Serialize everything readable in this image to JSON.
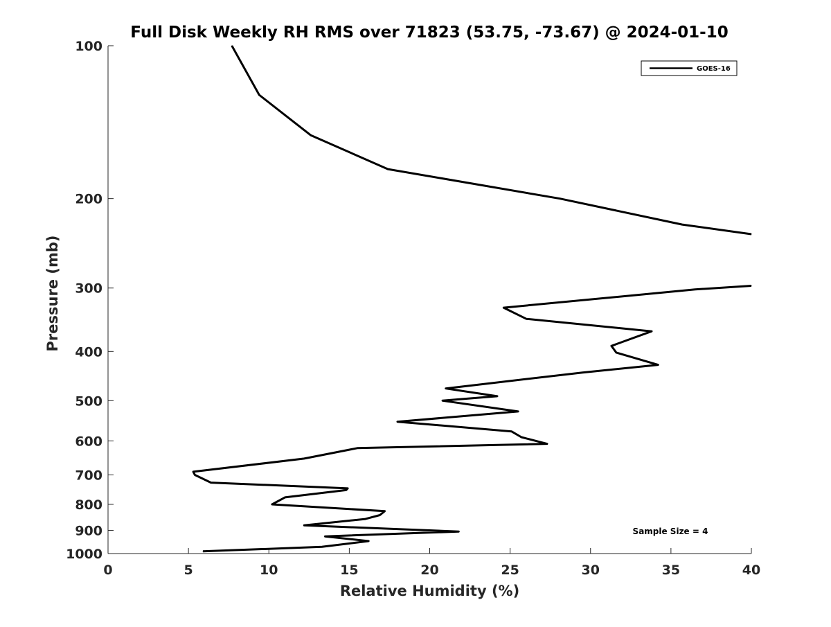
{
  "chart_data": {
    "type": "line",
    "title": "Full Disk Weekly RH RMS over 71823 (53.75, -73.67) @ 2024-01-10",
    "xlabel": "Relative Humidity (%)",
    "ylabel": "Pressure (mb)",
    "xlim": [
      0,
      40
    ],
    "ylim": [
      1000,
      100
    ],
    "yscale": "log",
    "x_ticks": [
      "0",
      "5",
      "10",
      "15",
      "20",
      "25",
      "30",
      "35",
      "40"
    ],
    "y_ticks": [
      "100",
      "200",
      "300",
      "400",
      "500",
      "600",
      "700",
      "800",
      "900",
      "1000"
    ],
    "grid": false,
    "legend_position": "top-right",
    "annotation": "Sample Size = 4",
    "series": [
      {
        "name": "GOES-16",
        "color": "#000000",
        "segments": [
          [
            {
              "x": 7.7,
              "y": 100
            },
            {
              "x": 9.4,
              "y": 125
            },
            {
              "x": 12.6,
              "y": 150
            },
            {
              "x": 17.4,
              "y": 175
            },
            {
              "x": 28.1,
              "y": 200
            },
            {
              "x": 35.7,
              "y": 225
            },
            {
              "x": 40.0,
              "y": 235
            }
          ],
          [
            {
              "x": 40.0,
              "y": 297
            },
            {
              "x": 36.5,
              "y": 302
            },
            {
              "x": 24.6,
              "y": 328
            },
            {
              "x": 26.0,
              "y": 345
            },
            {
              "x": 33.8,
              "y": 365
            },
            {
              "x": 31.3,
              "y": 390
            },
            {
              "x": 31.6,
              "y": 402
            },
            {
              "x": 34.2,
              "y": 425
            },
            {
              "x": 29.5,
              "y": 440
            },
            {
              "x": 21.0,
              "y": 473
            },
            {
              "x": 24.2,
              "y": 490
            },
            {
              "x": 20.8,
              "y": 500
            },
            {
              "x": 25.5,
              "y": 525
            },
            {
              "x": 18.0,
              "y": 550
            },
            {
              "x": 25.1,
              "y": 575
            },
            {
              "x": 25.7,
              "y": 590
            },
            {
              "x": 27.3,
              "y": 608
            },
            {
              "x": 15.5,
              "y": 620
            },
            {
              "x": 12.2,
              "y": 650
            },
            {
              "x": 5.3,
              "y": 690
            },
            {
              "x": 5.4,
              "y": 700
            },
            {
              "x": 6.4,
              "y": 725
            },
            {
              "x": 14.9,
              "y": 744
            },
            {
              "x": 14.8,
              "y": 750
            },
            {
              "x": 11.0,
              "y": 775
            },
            {
              "x": 10.2,
              "y": 800
            },
            {
              "x": 17.2,
              "y": 825
            },
            {
              "x": 16.9,
              "y": 840
            },
            {
              "x": 16.0,
              "y": 855
            },
            {
              "x": 12.2,
              "y": 880
            },
            {
              "x": 21.8,
              "y": 905
            },
            {
              "x": 13.5,
              "y": 925
            },
            {
              "x": 16.2,
              "y": 945
            },
            {
              "x": 13.3,
              "y": 970
            },
            {
              "x": 5.9,
              "y": 990
            }
          ]
        ]
      }
    ]
  }
}
